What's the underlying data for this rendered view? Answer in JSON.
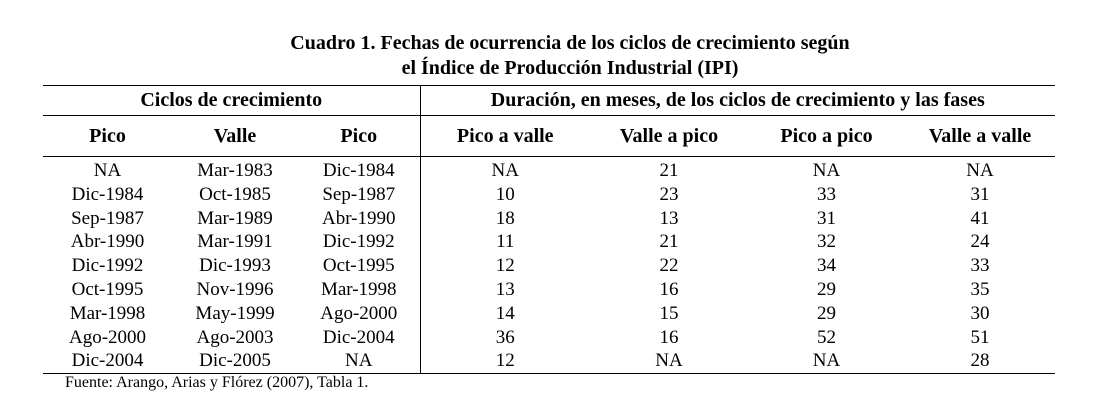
{
  "title": [
    "Cuadro 1. Fechas de ocurrencia de los ciclos de crecimiento según",
    "el Índice de Producción Industrial (IPI)"
  ],
  "table": {
    "group_headers": [
      "Ciclos de crecimiento",
      "Duración, en meses, de los ciclos de crecimiento y las fases"
    ],
    "headers": [
      "Pico",
      "Valle",
      "Pico",
      "Pico a valle",
      "Valle a pico",
      "Pico a pico",
      "Valle a valle"
    ],
    "rows": [
      [
        "NA",
        "Mar-1983",
        "Dic-1984",
        "NA",
        21,
        "NA",
        "NA"
      ],
      [
        "Dic-1984",
        "Oct-1985",
        "Sep-1987",
        10,
        23,
        33,
        31
      ],
      [
        "Sep-1987",
        "Mar-1989",
        "Abr-1990",
        18,
        13,
        31,
        41
      ],
      [
        "Abr-1990",
        "Mar-1991",
        "Dic-1992",
        11,
        21,
        32,
        24
      ],
      [
        "Dic-1992",
        "Dic-1993",
        "Oct-1995",
        12,
        22,
        34,
        33
      ],
      [
        "Oct-1995",
        "Nov-1996",
        "Mar-1998",
        13,
        16,
        29,
        35
      ],
      [
        "Mar-1998",
        "May-1999",
        "Ago-2000",
        14,
        15,
        29,
        30
      ],
      [
        "Ago-2000",
        "Ago-2003",
        "Dic-2004",
        36,
        16,
        52,
        51
      ],
      [
        "Dic-2004",
        "Dic-2005",
        "NA",
        12,
        "NA",
        "NA",
        28
      ]
    ]
  },
  "source": "Fuente: Arango, Arias y Flórez (2007), Tabla 1."
}
